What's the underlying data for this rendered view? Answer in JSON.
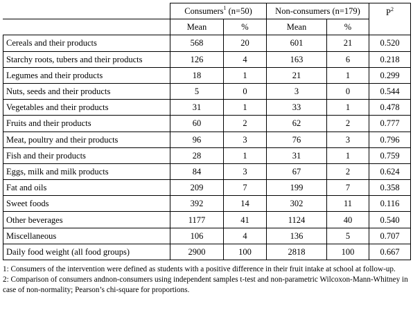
{
  "header": {
    "consumers": "Consumers",
    "consumers_sup": "1",
    "consumers_n": " (n=50)",
    "non_consumers": "Non-consumers (n=179)",
    "p": "P",
    "p_sup": "2",
    "mean": "Mean",
    "pct": "%"
  },
  "rows": [
    {
      "label": "Cereals and their products",
      "c_mean": "568",
      "c_pct": "20",
      "n_mean": "601",
      "n_pct": "21",
      "p": "0.520"
    },
    {
      "label": "Starchy roots, tubers and their products",
      "c_mean": "126",
      "c_pct": "4",
      "n_mean": "163",
      "n_pct": "6",
      "p": "0.218"
    },
    {
      "label": "Legumes and their products",
      "c_mean": "18",
      "c_pct": "1",
      "n_mean": "21",
      "n_pct": "1",
      "p": "0.299"
    },
    {
      "label": "Nuts, seeds and their products",
      "c_mean": "5",
      "c_pct": "0",
      "n_mean": "3",
      "n_pct": "0",
      "p": "0.544"
    },
    {
      "label": "Vegetables and their products",
      "c_mean": "31",
      "c_pct": "1",
      "n_mean": "33",
      "n_pct": "1",
      "p": "0.478"
    },
    {
      "label": "Fruits and their products",
      "c_mean": "60",
      "c_pct": "2",
      "n_mean": "62",
      "n_pct": "2",
      "p": "0.777"
    },
    {
      "label": "Meat, poultry and their products",
      "c_mean": "96",
      "c_pct": "3",
      "n_mean": "76",
      "n_pct": "3",
      "p": "0.796"
    },
    {
      "label": "Fish and their products",
      "c_mean": "28",
      "c_pct": "1",
      "n_mean": "31",
      "n_pct": "1",
      "p": "0.759"
    },
    {
      "label": "Eggs, milk and milk products",
      "c_mean": "84",
      "c_pct": "3",
      "n_mean": "67",
      "n_pct": "2",
      "p": "0.624"
    },
    {
      "label": "Fat and oils",
      "c_mean": "209",
      "c_pct": "7",
      "n_mean": "199",
      "n_pct": "7",
      "p": "0.358"
    },
    {
      "label": "Sweet foods",
      "c_mean": "392",
      "c_pct": "14",
      "n_mean": "302",
      "n_pct": "11",
      "p": "0.116"
    },
    {
      "label": "Other beverages",
      "c_mean": "1177",
      "c_pct": "41",
      "n_mean": "1124",
      "n_pct": "40",
      "p": "0.540"
    },
    {
      "label": "Miscellaneous",
      "c_mean": "106",
      "c_pct": "4",
      "n_mean": "136",
      "n_pct": "5",
      "p": "0.707"
    },
    {
      "label": "Daily food weight (all food groups)",
      "c_mean": "2900",
      "c_pct": "100",
      "n_mean": "2818",
      "n_pct": "100",
      "p": "0.667"
    }
  ],
  "footnotes": [
    "1: Consumers of the intervention were defined as students with a positive difference in their fruit intake at school at follow-up.",
    "2: Comparison of consumers andnon-consumers using independent samples t-test and non-parametric Wilcoxon-Mann-Whitney in case of non-normality; Pearson’s chi-square for proportions."
  ]
}
